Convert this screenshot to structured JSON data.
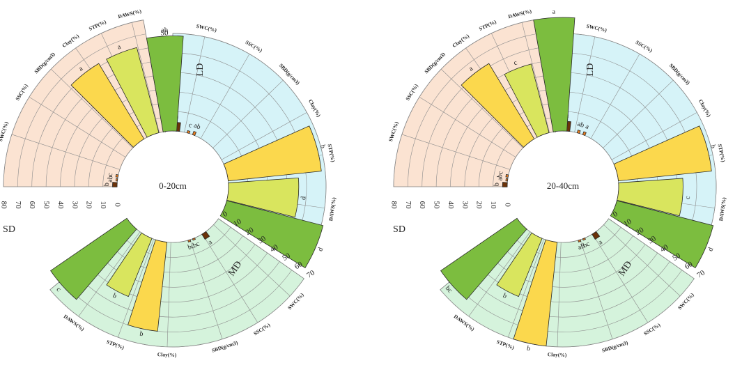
{
  "colors": {
    "LD_bg": "#d6f3f8",
    "SD_bg": "#fbe3d2",
    "MD_bg": "#d5f3dc",
    "SWC": "#6b3209",
    "SSC": "#ee7e1e",
    "SBD": "#ee7e1e",
    "Clay": "#fbd84d",
    "STP": "#d9e55e",
    "DAWS": "#7cbd3f",
    "grid": "#8c8c8c",
    "bar_edge": "#2a2a2a"
  },
  "chart_data": [
    {
      "type": "circular_bar",
      "center_label": "0-20cm",
      "variables": [
        "SWC(%)",
        "SSC(%)",
        "SBD(g/cm3)",
        "Clay(%)",
        "STP(%)",
        "DAWS(%)"
      ],
      "groups": [
        {
          "name": "LD",
          "axis_ticks": [
            0,
            10,
            20,
            30,
            40,
            50
          ],
          "values": [
            4.5,
            1.2,
            1.8,
            48,
            36,
            51
          ],
          "letters": [
            "a",
            "c",
            "ab",
            "b",
            "d",
            "d"
          ]
        },
        {
          "name": "SD",
          "axis_ticks": [
            0,
            10,
            20,
            30,
            40,
            50,
            60,
            70,
            80
          ],
          "values": [
            3.2,
            1.0,
            1.5,
            62,
            62,
            67
          ],
          "letters": [
            "b",
            "ab",
            "c",
            "a",
            "a",
            "ab"
          ]
        },
        {
          "name": "MD",
          "axis_ticks": [
            0,
            10,
            20,
            30,
            40,
            50,
            60,
            70
          ],
          "values": [
            4.0,
            1.0,
            1.2,
            60,
            42,
            62
          ],
          "letters": [
            "a",
            "bc",
            "bc",
            "b",
            "b",
            "c"
          ]
        }
      ]
    },
    {
      "type": "circular_bar",
      "center_label": "20-40cm",
      "variables": [
        "SWC(%)",
        "SSC(%)",
        "SBD(g/cm3)",
        "Clay(%)",
        "STP(%)",
        "DAWS(%)"
      ],
      "groups": [
        {
          "name": "LD",
          "axis_ticks": [
            0,
            10,
            20,
            30,
            40,
            50
          ],
          "values": [
            5.0,
            1.5,
            1.6,
            48,
            33,
            51
          ],
          "letters": [
            "a",
            "ab",
            "a",
            "b",
            "c",
            "d"
          ]
        },
        {
          "name": "SD",
          "axis_ticks": [
            0,
            10,
            20,
            30,
            40,
            50,
            60,
            70,
            80
          ],
          "values": [
            3.3,
            1.2,
            1.6,
            62,
            50,
            80
          ],
          "letters": [
            "b",
            "a",
            "bc",
            "a",
            "c",
            "a"
          ]
        },
        {
          "name": "MD",
          "axis_ticks": [
            0,
            10,
            20,
            30,
            40,
            50,
            60,
            70
          ],
          "values": [
            4.0,
            1.0,
            1.2,
            70,
            42,
            62
          ],
          "letters": [
            "a",
            "bc",
            "ab",
            "b",
            "b",
            "bc"
          ]
        }
      ]
    }
  ]
}
